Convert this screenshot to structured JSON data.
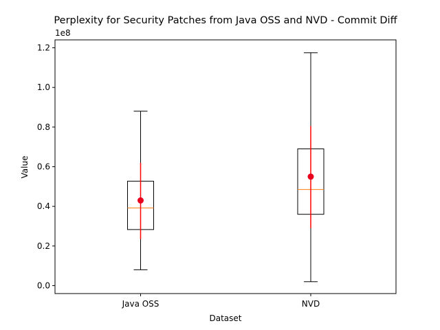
{
  "chart_data": {
    "type": "box",
    "title": "Perplexity for Security Patches from Java OSS and NVD - Commit Diff",
    "xlabel": "Dataset",
    "ylabel": "Value",
    "y_offset_label": "1e8",
    "ylim": [
      -0.04,
      1.24
    ],
    "y_ticks": [
      0.0,
      0.2,
      0.4,
      0.6,
      0.8,
      1.0,
      1.2
    ],
    "y_tick_labels": [
      "0.0",
      "0.2",
      "0.4",
      "0.6",
      "0.8",
      "1.0",
      "1.2"
    ],
    "categories": [
      "Java OSS",
      "NVD"
    ],
    "boxes": [
      {
        "name": "Java OSS",
        "whisker_low": 0.08,
        "q1": 0.283,
        "median": 0.392,
        "q3": 0.527,
        "whisker_high": 0.88,
        "mean": 0.43,
        "std_low": 0.235,
        "std_high": 0.62
      },
      {
        "name": "NVD",
        "whisker_low": 0.02,
        "q1": 0.36,
        "median": 0.485,
        "q3": 0.69,
        "whisker_high": 1.175,
        "mean": 0.55,
        "std_low": 0.29,
        "std_high": 0.805
      }
    ],
    "colors": {
      "box": "#000000",
      "median": "#ff7f0e",
      "mean": "#e8001c",
      "errorbar": "#ff0000"
    }
  }
}
